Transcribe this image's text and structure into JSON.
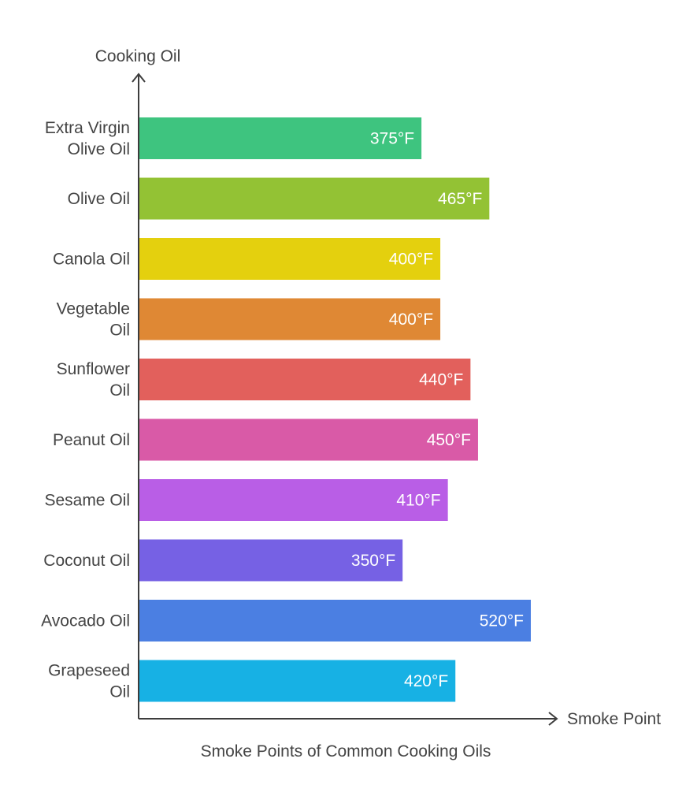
{
  "chart_data": {
    "type": "bar",
    "orientation": "horizontal",
    "title": "Smoke Points of Common Cooking Oils",
    "xlabel": "Smoke Point",
    "ylabel": "Cooking Oil",
    "unit": "°F",
    "grid": false,
    "legend": "none",
    "xlim": [
      0,
      560
    ],
    "categories": [
      [
        "Extra Virgin",
        "Olive Oil"
      ],
      [
        "Olive Oil"
      ],
      [
        "Canola Oil"
      ],
      [
        "Vegetable",
        "Oil"
      ],
      [
        "Sunflower",
        "Oil"
      ],
      [
        "Peanut Oil"
      ],
      [
        "Sesame Oil"
      ],
      [
        "Coconut Oil"
      ],
      [
        "Avocado Oil"
      ],
      [
        "Grapeseed",
        "Oil"
      ]
    ],
    "values": [
      375,
      465,
      400,
      400,
      440,
      450,
      410,
      350,
      520,
      420
    ],
    "value_labels": [
      "375°F",
      "465°F",
      "400°F",
      "400°F",
      "440°F",
      "450°F",
      "410°F",
      "350°F",
      "520°F",
      "420°F"
    ],
    "colors": [
      "#3ec47f",
      "#93c234",
      "#e4d00e",
      "#df8834",
      "#e2605c",
      "#d95aa7",
      "#b95ee6",
      "#7661e4",
      "#4b7fe2",
      "#17b1e4"
    ]
  }
}
